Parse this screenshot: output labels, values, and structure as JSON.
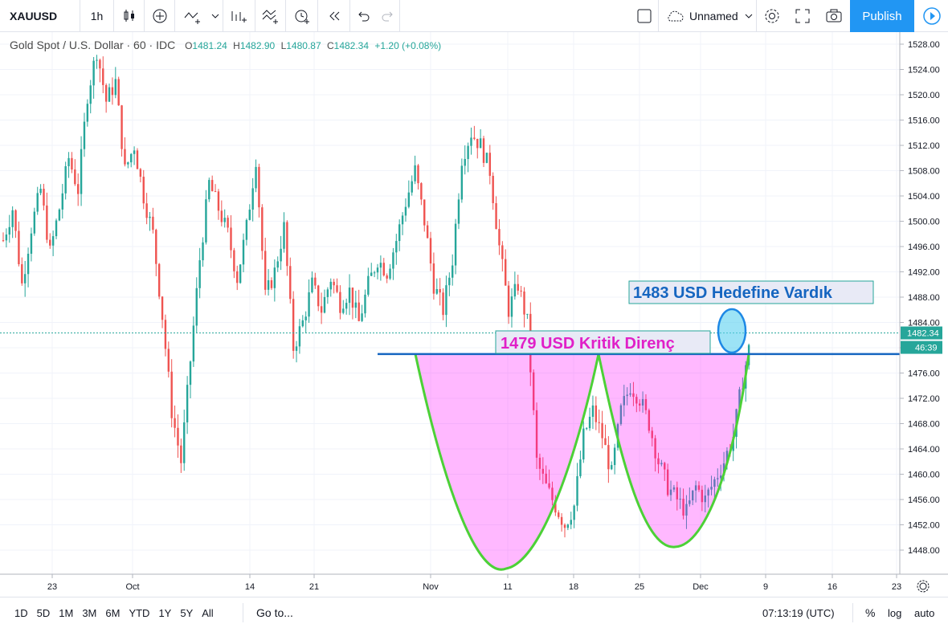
{
  "toolbar": {
    "symbol": "XAUUSD",
    "interval": "1h",
    "layout_name": "Unnamed",
    "publish_label": "Publish",
    "icons": [
      "candles-icon",
      "add-indicator-icon",
      "trend-line-icon",
      "chevron-down-icon",
      "indicators-icon",
      "drawing-icon",
      "alert-icon",
      "replay-icon",
      "undo-icon",
      "redo-icon",
      "layout-icon",
      "cloud-icon",
      "settings-icon",
      "fullscreen-icon",
      "camera-icon",
      "play-icon"
    ]
  },
  "legend": {
    "title": "Gold Spot / U.S. Dollar · 60 · IDC",
    "o_label": "O",
    "o": "1481.24",
    "h_label": "H",
    "h": "1482.90",
    "l_label": "L",
    "l": "1480.87",
    "c_label": "C",
    "c": "1482.34",
    "change": "+1.20 (+0.08%)"
  },
  "chart_data": {
    "type": "candlestick",
    "symbol": "XAUUSD",
    "ylim": [
      1444,
      1530
    ],
    "y_ticks": [
      "1528.00",
      "1524.00",
      "1520.00",
      "1516.00",
      "1512.00",
      "1508.00",
      "1504.00",
      "1500.00",
      "1496.00",
      "1492.00",
      "1488.00",
      "1484.00",
      "1480.00",
      "1476.00",
      "1472.00",
      "1468.00",
      "1464.00",
      "1460.00",
      "1456.00",
      "1452.00",
      "1448.00"
    ],
    "x_ticks": [
      "23",
      "Oct",
      "14",
      "21",
      "Nov",
      "11",
      "18",
      "25",
      "Dec",
      "9",
      "16",
      "23"
    ],
    "last_price": "1482.34",
    "countdown": "46:39",
    "price_series": [
      [
        0,
        1497
      ],
      [
        3,
        1502
      ],
      [
        6,
        1490
      ],
      [
        9,
        1499
      ],
      [
        12,
        1505
      ],
      [
        15,
        1495
      ],
      [
        18,
        1502
      ],
      [
        21,
        1510
      ],
      [
        24,
        1505
      ],
      [
        27,
        1520
      ],
      [
        30,
        1527
      ],
      [
        33,
        1519
      ],
      [
        36,
        1522
      ],
      [
        39,
        1508
      ],
      [
        42,
        1512
      ],
      [
        45,
        1504
      ],
      [
        48,
        1498
      ],
      [
        51,
        1485
      ],
      [
        54,
        1470
      ],
      [
        57,
        1462
      ],
      [
        60,
        1478
      ],
      [
        63,
        1494
      ],
      [
        66,
        1506
      ],
      [
        69,
        1502
      ],
      [
        72,
        1498
      ],
      [
        75,
        1491
      ],
      [
        78,
        1499
      ],
      [
        81,
        1510
      ],
      [
        84,
        1488
      ],
      [
        87,
        1492
      ],
      [
        90,
        1499
      ],
      [
        93,
        1480
      ],
      [
        96,
        1484
      ],
      [
        99,
        1490
      ],
      [
        102,
        1486
      ],
      [
        105,
        1491
      ],
      [
        108,
        1487
      ],
      [
        111,
        1489
      ],
      [
        114,
        1484
      ],
      [
        117,
        1490
      ],
      [
        120,
        1494
      ],
      [
        123,
        1492
      ],
      [
        126,
        1497
      ],
      [
        129,
        1503
      ],
      [
        132,
        1508
      ],
      [
        135,
        1500
      ],
      [
        138,
        1490
      ],
      [
        141,
        1486
      ],
      [
        144,
        1494
      ],
      [
        147,
        1510
      ],
      [
        150,
        1514
      ],
      [
        153,
        1512
      ],
      [
        156,
        1508
      ],
      [
        159,
        1496
      ],
      [
        162,
        1486
      ],
      [
        165,
        1490
      ],
      [
        168,
        1484
      ],
      [
        171,
        1462
      ],
      [
        174,
        1458
      ],
      [
        177,
        1455
      ],
      [
        180,
        1452
      ],
      [
        183,
        1455
      ],
      [
        186,
        1466
      ],
      [
        189,
        1470
      ],
      [
        192,
        1466
      ],
      [
        195,
        1460
      ],
      [
        198,
        1470
      ],
      [
        201,
        1474
      ],
      [
        204,
        1472
      ],
      [
        207,
        1468
      ],
      [
        210,
        1462
      ],
      [
        213,
        1458
      ],
      [
        216,
        1456
      ],
      [
        219,
        1454
      ],
      [
        222,
        1458
      ],
      [
        225,
        1456
      ],
      [
        228,
        1459
      ],
      [
        231,
        1462
      ],
      [
        234,
        1466
      ],
      [
        237,
        1475
      ],
      [
        240,
        1482
      ]
    ],
    "annotations": [
      {
        "text": "1483 USD Hedefine Vardık",
        "color": "#1565c0",
        "target_price": 1483
      },
      {
        "text": "1479 USD Kritik Direnç",
        "color": "#e020c8",
        "resistance_price": 1479
      }
    ],
    "pattern": "cup-and-handle (double bottom) shaded magenta below 1479 resistance"
  },
  "bottombar": {
    "ranges": [
      "1D",
      "5D",
      "1M",
      "3M",
      "6M",
      "YTD",
      "1Y",
      "5Y",
      "All"
    ],
    "goto_label": "Go to...",
    "time": "07:13:19 (UTC)",
    "percent_label": "%",
    "log_label": "log",
    "auto_label": "auto"
  }
}
